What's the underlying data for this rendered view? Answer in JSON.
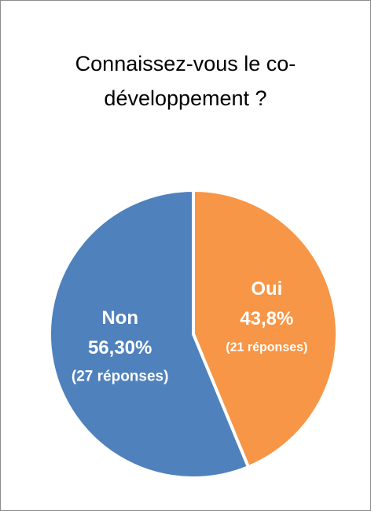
{
  "chart_data": {
    "type": "pie",
    "title": "Connaissez-vous le co-développement ?",
    "categories": [
      "Oui",
      "Non"
    ],
    "values": [
      43.8,
      56.3
    ],
    "value_labels": [
      "43,8%",
      "56,30%"
    ],
    "count_labels": [
      "(21 réponses)",
      "(27 réponses)"
    ],
    "colors": [
      "#f79646",
      "#4f81bd"
    ]
  }
}
